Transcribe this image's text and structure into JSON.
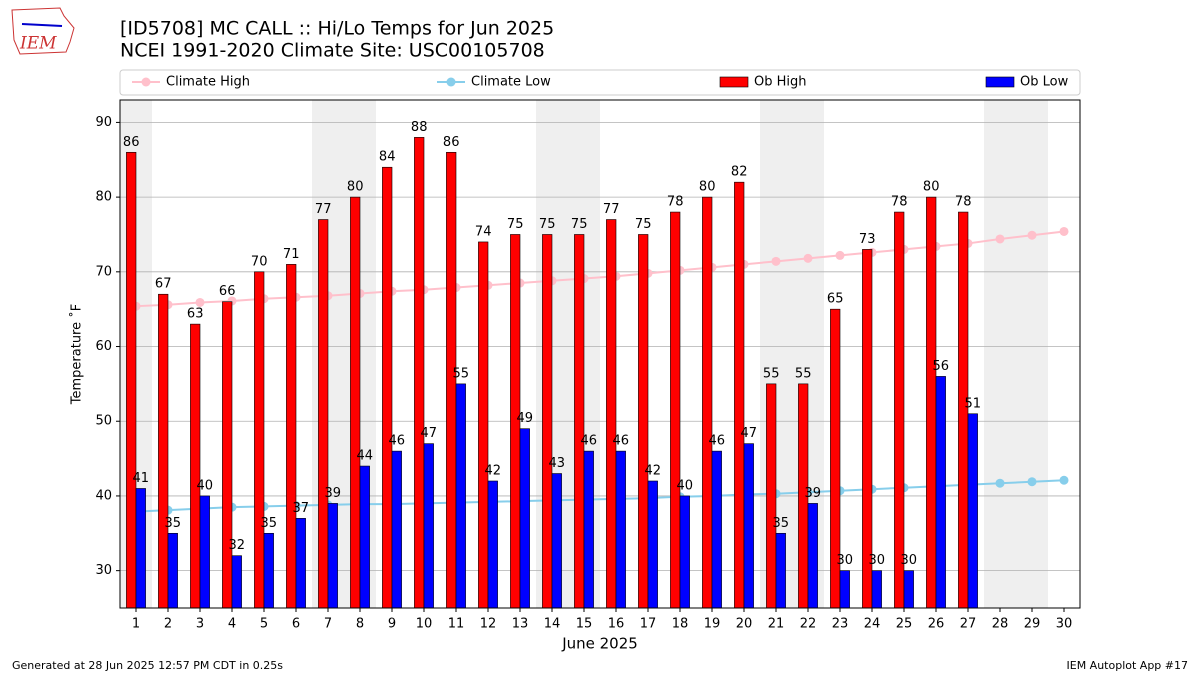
{
  "chart_data": {
    "type": "bar",
    "title": "[ID5708] MC CALL :: Hi/Lo Temps for Jun 2025",
    "subtitle": "NCEI 1991-2020 Climate Site: USC00105708",
    "x_label": "June 2025",
    "y_label": "Temperature ˚F",
    "logo_text": "IEM",
    "footer_left": "Generated at 28 Jun 2025 12:57 PM CDT in 0.25s",
    "footer_right": "IEM Autoplot App #17",
    "x": [
      1,
      2,
      3,
      4,
      5,
      6,
      7,
      8,
      9,
      10,
      11,
      12,
      13,
      14,
      15,
      16,
      17,
      18,
      19,
      20,
      21,
      22,
      23,
      24,
      25,
      26,
      27,
      28,
      29,
      30
    ],
    "xlim": [
      0.5,
      30.5
    ],
    "xticks": [
      1,
      2,
      3,
      4,
      5,
      6,
      7,
      8,
      9,
      10,
      11,
      12,
      13,
      14,
      15,
      16,
      17,
      18,
      19,
      20,
      21,
      22,
      23,
      24,
      25,
      26,
      27,
      28,
      29,
      30
    ],
    "ylim": [
      25,
      93
    ],
    "yticks": [
      30,
      40,
      50,
      60,
      70,
      80,
      90
    ],
    "grid": true,
    "shaded_days": [
      1,
      7,
      8,
      14,
      15,
      21,
      22,
      28,
      29
    ],
    "series": [
      {
        "name": "Climate High",
        "mark": "line",
        "color": "#ffc0cb",
        "values": [
          65.4,
          65.6,
          65.9,
          66.1,
          66.4,
          66.6,
          66.8,
          67.1,
          67.4,
          67.6,
          67.9,
          68.2,
          68.5,
          68.8,
          69.1,
          69.4,
          69.8,
          70.2,
          70.6,
          71.0,
          71.4,
          71.8,
          72.2,
          72.6,
          73.0,
          73.4,
          73.8,
          74.4,
          74.9,
          75.4
        ]
      },
      {
        "name": "Climate Low",
        "mark": "line",
        "color": "#87ceeb",
        "values": [
          37.9,
          38.1,
          38.3,
          38.5,
          38.6,
          38.7,
          38.8,
          38.9,
          38.9,
          39.0,
          39.1,
          39.2,
          39.3,
          39.4,
          39.5,
          39.6,
          39.7,
          39.9,
          40.0,
          40.2,
          40.3,
          40.5,
          40.7,
          40.9,
          41.1,
          41.3,
          41.5,
          41.7,
          41.9,
          42.1
        ]
      },
      {
        "name": "Ob High",
        "mark": "bar",
        "color": "#ff0000",
        "values": [
          86,
          67,
          63,
          66,
          70,
          71,
          77,
          80,
          84,
          88,
          86,
          74,
          75,
          75,
          75,
          77,
          75,
          78,
          80,
          82,
          55,
          55,
          65,
          73,
          78,
          80,
          78,
          null,
          null,
          null
        ]
      },
      {
        "name": "Ob Low",
        "mark": "bar",
        "color": "#0000ff",
        "values": [
          41,
          35,
          40,
          32,
          35,
          37,
          39,
          44,
          46,
          47,
          55,
          42,
          49,
          43,
          46,
          46,
          42,
          40,
          46,
          47,
          35,
          39,
          30,
          30,
          30,
          56,
          51,
          null,
          null,
          null
        ]
      }
    ]
  }
}
